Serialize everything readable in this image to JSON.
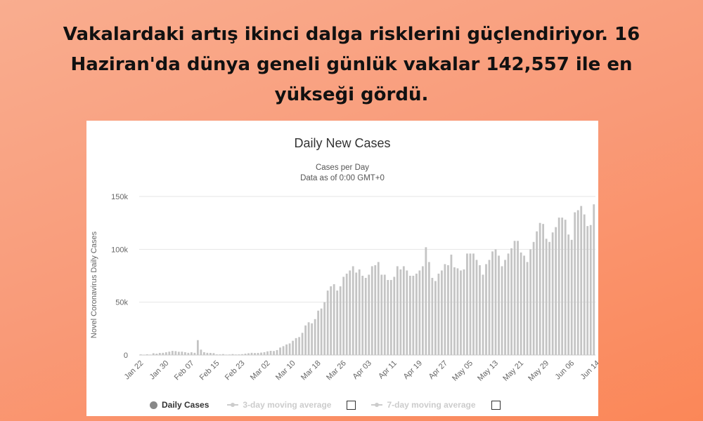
{
  "headline": "Vakalardaki artış ikinci dalga risklerini güçlendiriyor. 16 Haziran'da dünya geneli günlük vakalar 142,557 ile en yükseği gördü.",
  "colors": {
    "bar": "#c4c4c4",
    "grid": "#e6e6e6",
    "axis_text": "#666666",
    "legend_muted": "#cccccc"
  },
  "legend": {
    "daily": "Daily Cases",
    "avg3": "3-day moving average",
    "avg7": "7-day moving average"
  },
  "chart_data": {
    "type": "bar",
    "title": "Daily New Cases",
    "subtitle": [
      "Cases per Day",
      "Data as of 0:00 GMT+0"
    ],
    "ylabel": "Novel Coronavirus Daily Cases",
    "xlabel": "",
    "ylim": [
      0,
      150000
    ],
    "ytick_values": [
      0,
      50000,
      100000,
      150000
    ],
    "ytick_labels": [
      "0",
      "50k",
      "100k",
      "150k"
    ],
    "x_tick_labels": [
      "Jan 22",
      "Jan 30",
      "Feb 07",
      "Feb 15",
      "Feb 23",
      "Mar 02",
      "Mar 10",
      "Mar 18",
      "Mar 26",
      "Apr 03",
      "Apr 11",
      "Apr 19",
      "Apr 27",
      "May 05",
      "May 13",
      "May 21",
      "May 29",
      "Jun 06",
      "Jun 14"
    ],
    "start_date": "Jan 22",
    "series": [
      {
        "values": [
          600,
          300,
          700,
          400,
          1700,
          1300,
          2000,
          2100,
          2600,
          3200,
          3900,
          3700,
          3100,
          3200,
          2700,
          2100,
          2600,
          2100,
          14100,
          5100,
          2700,
          2100,
          2000,
          1800,
          600,
          600,
          900,
          400,
          500,
          900,
          500,
          600,
          800,
          1300,
          1700,
          2100,
          1900,
          2000,
          2300,
          2700,
          3500,
          4000,
          3800,
          4700,
          7100,
          8400,
          10000,
          11000,
          13500,
          16000,
          17000,
          21000,
          28000,
          31000,
          30000,
          34000,
          42000,
          44000,
          50000,
          61000,
          65000,
          67000,
          61000,
          65000,
          74000,
          77000,
          80000,
          84000,
          78000,
          81000,
          75000,
          73000,
          76000,
          84000,
          85000,
          88000,
          76000,
          76000,
          71000,
          71000,
          74000,
          84000,
          81000,
          84000,
          80000,
          75000,
          75000,
          77000,
          80000,
          84000,
          102000,
          88000,
          73000,
          70000,
          77000,
          80000,
          86000,
          85000,
          95000,
          83000,
          82000,
          80000,
          81000,
          96000,
          96000,
          96000,
          90000,
          85000,
          76000,
          86000,
          90000,
          98000,
          100000,
          94000,
          84000,
          90000,
          96000,
          101000,
          108000,
          108000,
          97000,
          94000,
          88000,
          100000,
          107000,
          117000,
          125000,
          124000,
          110000,
          107000,
          116000,
          121000,
          130000,
          130000,
          128000,
          114000,
          109000,
          135000,
          137000,
          141000,
          133000,
          122000,
          123000,
          142557
        ]
      }
    ]
  }
}
